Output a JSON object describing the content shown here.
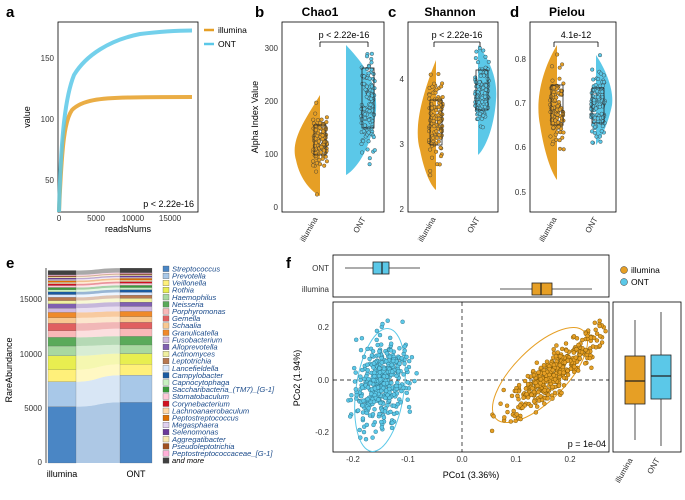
{
  "colors": {
    "illumina": "#E69F25",
    "ont": "#5BC8E8",
    "ont_dark": "#2a8fb0",
    "ill_dark": "#a86b00"
  },
  "panel_labels": {
    "a": "a",
    "b": "b",
    "c": "c",
    "d": "d",
    "e": "e",
    "f": "f"
  },
  "groups": [
    "illumina",
    "ONT"
  ],
  "panel_a": {
    "type": "line",
    "xlabel": "readsNums",
    "ylabel": "value",
    "x_ticks": [
      "0",
      "5000",
      "10000",
      "15000"
    ],
    "y_ticks": [
      "50",
      "100",
      "150"
    ],
    "xlim": [
      0,
      19000
    ],
    "ylim": [
      25,
      180
    ],
    "pvalue": "p < 2.22e-16",
    "legend": [
      "illumina",
      "ONT"
    ],
    "series": [
      {
        "name": "illumina",
        "asymptote": 118
      },
      {
        "name": "ONT",
        "asymptote": 174
      }
    ]
  },
  "panel_b": {
    "title": "Chao1",
    "ylabel": "Alpha Index Value",
    "y_ticks": [
      "0",
      "100",
      "200",
      "300"
    ],
    "ylim": [
      -10,
      350
    ],
    "pvalue": "p < 2.22e-16",
    "categories": [
      "illumina",
      "ONT"
    ],
    "medians": [
      113,
      190
    ]
  },
  "panel_c": {
    "title": "Shannon",
    "y_ticks": [
      "2",
      "3",
      "4"
    ],
    "ylim": [
      1.95,
      4.85
    ],
    "pvalue": "p < 2.22e-16",
    "categories": [
      "illumina",
      "ONT"
    ],
    "medians": [
      3.3,
      3.75
    ]
  },
  "panel_d": {
    "title": "Pielou",
    "y_ticks": [
      "0.5",
      "0.6",
      "0.7",
      "0.8"
    ],
    "ylim": [
      0.46,
      0.86
    ],
    "pvalue": "4.1e-12",
    "categories": [
      "illumina",
      "ONT"
    ],
    "medians": [
      0.71,
      0.705
    ]
  },
  "panel_e": {
    "type": "bar",
    "ylabel": "RareAbundance",
    "y_ticks": [
      "0",
      "5000",
      "10000",
      "15000"
    ],
    "categories": [
      "illumina",
      "ONT"
    ],
    "genera": [
      "Streptococcus",
      "Prevotella",
      "Veillonella",
      "Rothia",
      "Haemophilus",
      "Neisseria",
      "Porphyromonas",
      "Gemella",
      "Schaalia",
      "Granulicatella",
      "Fusobacterium",
      "Alloprevotella",
      "Actinomyces",
      "Leptotrichia",
      "Lancefieldella",
      "Campylobacter",
      "Capnocytophaga",
      "Saccharibacteria_(TM7)_[G-1]",
      "Stomatobaculum",
      "Corynebacterium",
      "Lachnoanaerobaculum",
      "Peptostreptococcus",
      "Megasphaera",
      "Selenomonas",
      "Aggregatibacter",
      "Pseudoleptotrichia",
      "Peptostreptococcaceae_[G-1]",
      "and more"
    ],
    "genus_colors": [
      "#4a86c5",
      "#a8c8e8",
      "#fff07a",
      "#e8ee50",
      "#a8d8a0",
      "#5aaa5a",
      "#f8b8b8",
      "#e06060",
      "#f8c890",
      "#ef8a2a",
      "#cfb8e0",
      "#8060b0",
      "#f0f0a0",
      "#b87850",
      "#d8e8ff",
      "#1a5aa0",
      "#c8f0c0",
      "#3a9a3a",
      "#ffc8d8",
      "#d01020",
      "#ffd8a8",
      "#e07000",
      "#e0d0f0",
      "#6a3a9a",
      "#f8e8b0",
      "#a05020",
      "#ffb0d8",
      "#404040"
    ],
    "series": [
      {
        "name": "illumina",
        "values": [
          5200,
          2300,
          1100,
          1300,
          900,
          800,
          600,
          700,
          500,
          500,
          400,
          400,
          300,
          300,
          250,
          250,
          200,
          200,
          180,
          160,
          150,
          150,
          120,
          120,
          100,
          100,
          90,
          400
        ]
      },
      {
        "name": "ONT",
        "values": [
          5600,
          2500,
          1000,
          1000,
          800,
          800,
          700,
          600,
          500,
          500,
          450,
          400,
          350,
          300,
          250,
          250,
          200,
          200,
          180,
          160,
          150,
          150,
          120,
          120,
          100,
          100,
          90,
          420
        ]
      }
    ]
  },
  "panel_f": {
    "type": "scatter",
    "xlabel": "PCo1 (3.36%)",
    "ylabel": "PCo2 (1.94%)",
    "x_ticks": [
      "-0.2",
      "-0.1",
      "0.0",
      "0.1",
      "0.2"
    ],
    "y_ticks": [
      "-0.2",
      "0.0",
      "0.2"
    ],
    "xlim": [
      -0.24,
      0.245
    ],
    "ylim": [
      -0.3,
      0.3
    ],
    "pvalue": "p = 1e-04",
    "legend": [
      "illumina",
      "ONT"
    ],
    "top_box_labels": [
      "ONT",
      "illumina"
    ],
    "right_box_labels": [
      "illumina",
      "ONT"
    ],
    "clusters": [
      {
        "name": "illumina",
        "center": [
          0.15,
          0.02
        ]
      },
      {
        "name": "ONT",
        "center": [
          -0.155,
          -0.02
        ]
      }
    ]
  }
}
